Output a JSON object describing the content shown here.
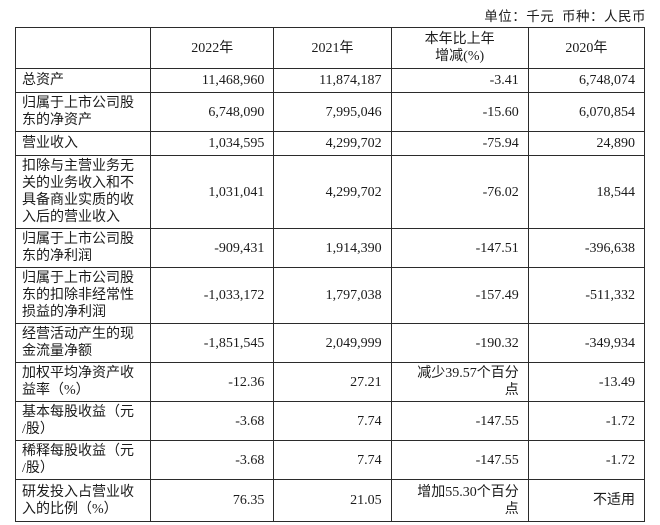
{
  "unit_note": "单位：千元  币种：人民币",
  "table": {
    "columns": [
      "",
      "2022年",
      "2021年",
      "本年比上年\n增减(%)",
      "2020年"
    ],
    "rows": [
      {
        "label": "总资产",
        "values": [
          "11,468,960",
          "11,874,187",
          "-3.41",
          "6,748,074"
        ]
      },
      {
        "label": "归属于上市公司股\n东的净资产",
        "values": [
          "6,748,090",
          "7,995,046",
          "-15.60",
          "6,070,854"
        ]
      },
      {
        "label": "营业收入",
        "values": [
          "1,034,595",
          "4,299,702",
          "-75.94",
          "24,890"
        ]
      },
      {
        "label": "扣除与主营业务无\n关的业务收入和不\n具备商业实质的收\n入后的营业收入",
        "values": [
          "1,031,041",
          "4,299,702",
          "-76.02",
          "18,544"
        ]
      },
      {
        "label": "归属于上市公司股\n东的净利润",
        "values": [
          "-909,431",
          "1,914,390",
          "-147.51",
          "-396,638"
        ]
      },
      {
        "label": "归属于上市公司股\n东的扣除非经常性\n损益的净利润",
        "values": [
          "-1,033,172",
          "1,797,038",
          "-157.49",
          "-511,332"
        ]
      },
      {
        "label": "经营活动产生的现\n金流量净额",
        "values": [
          "-1,851,545",
          "2,049,999",
          "-190.32",
          "-349,934"
        ]
      },
      {
        "label": "加权平均净资产收\n益率（%）",
        "values": [
          "-12.36",
          "27.21",
          "减少39.57个百分\n点",
          "-13.49"
        ]
      },
      {
        "label": "基本每股收益（元\n/股）",
        "values": [
          "-3.68",
          "7.74",
          "-147.55",
          "-1.72"
        ]
      },
      {
        "label": "稀释每股收益（元\n/股）",
        "values": [
          "-3.68",
          "7.74",
          "-147.55",
          "-1.72"
        ]
      },
      {
        "label": "研发投入占营业收\n入的比例（%）",
        "values": [
          "76.35",
          "21.05",
          "增加55.30个百分\n点",
          "不适用"
        ]
      }
    ]
  }
}
